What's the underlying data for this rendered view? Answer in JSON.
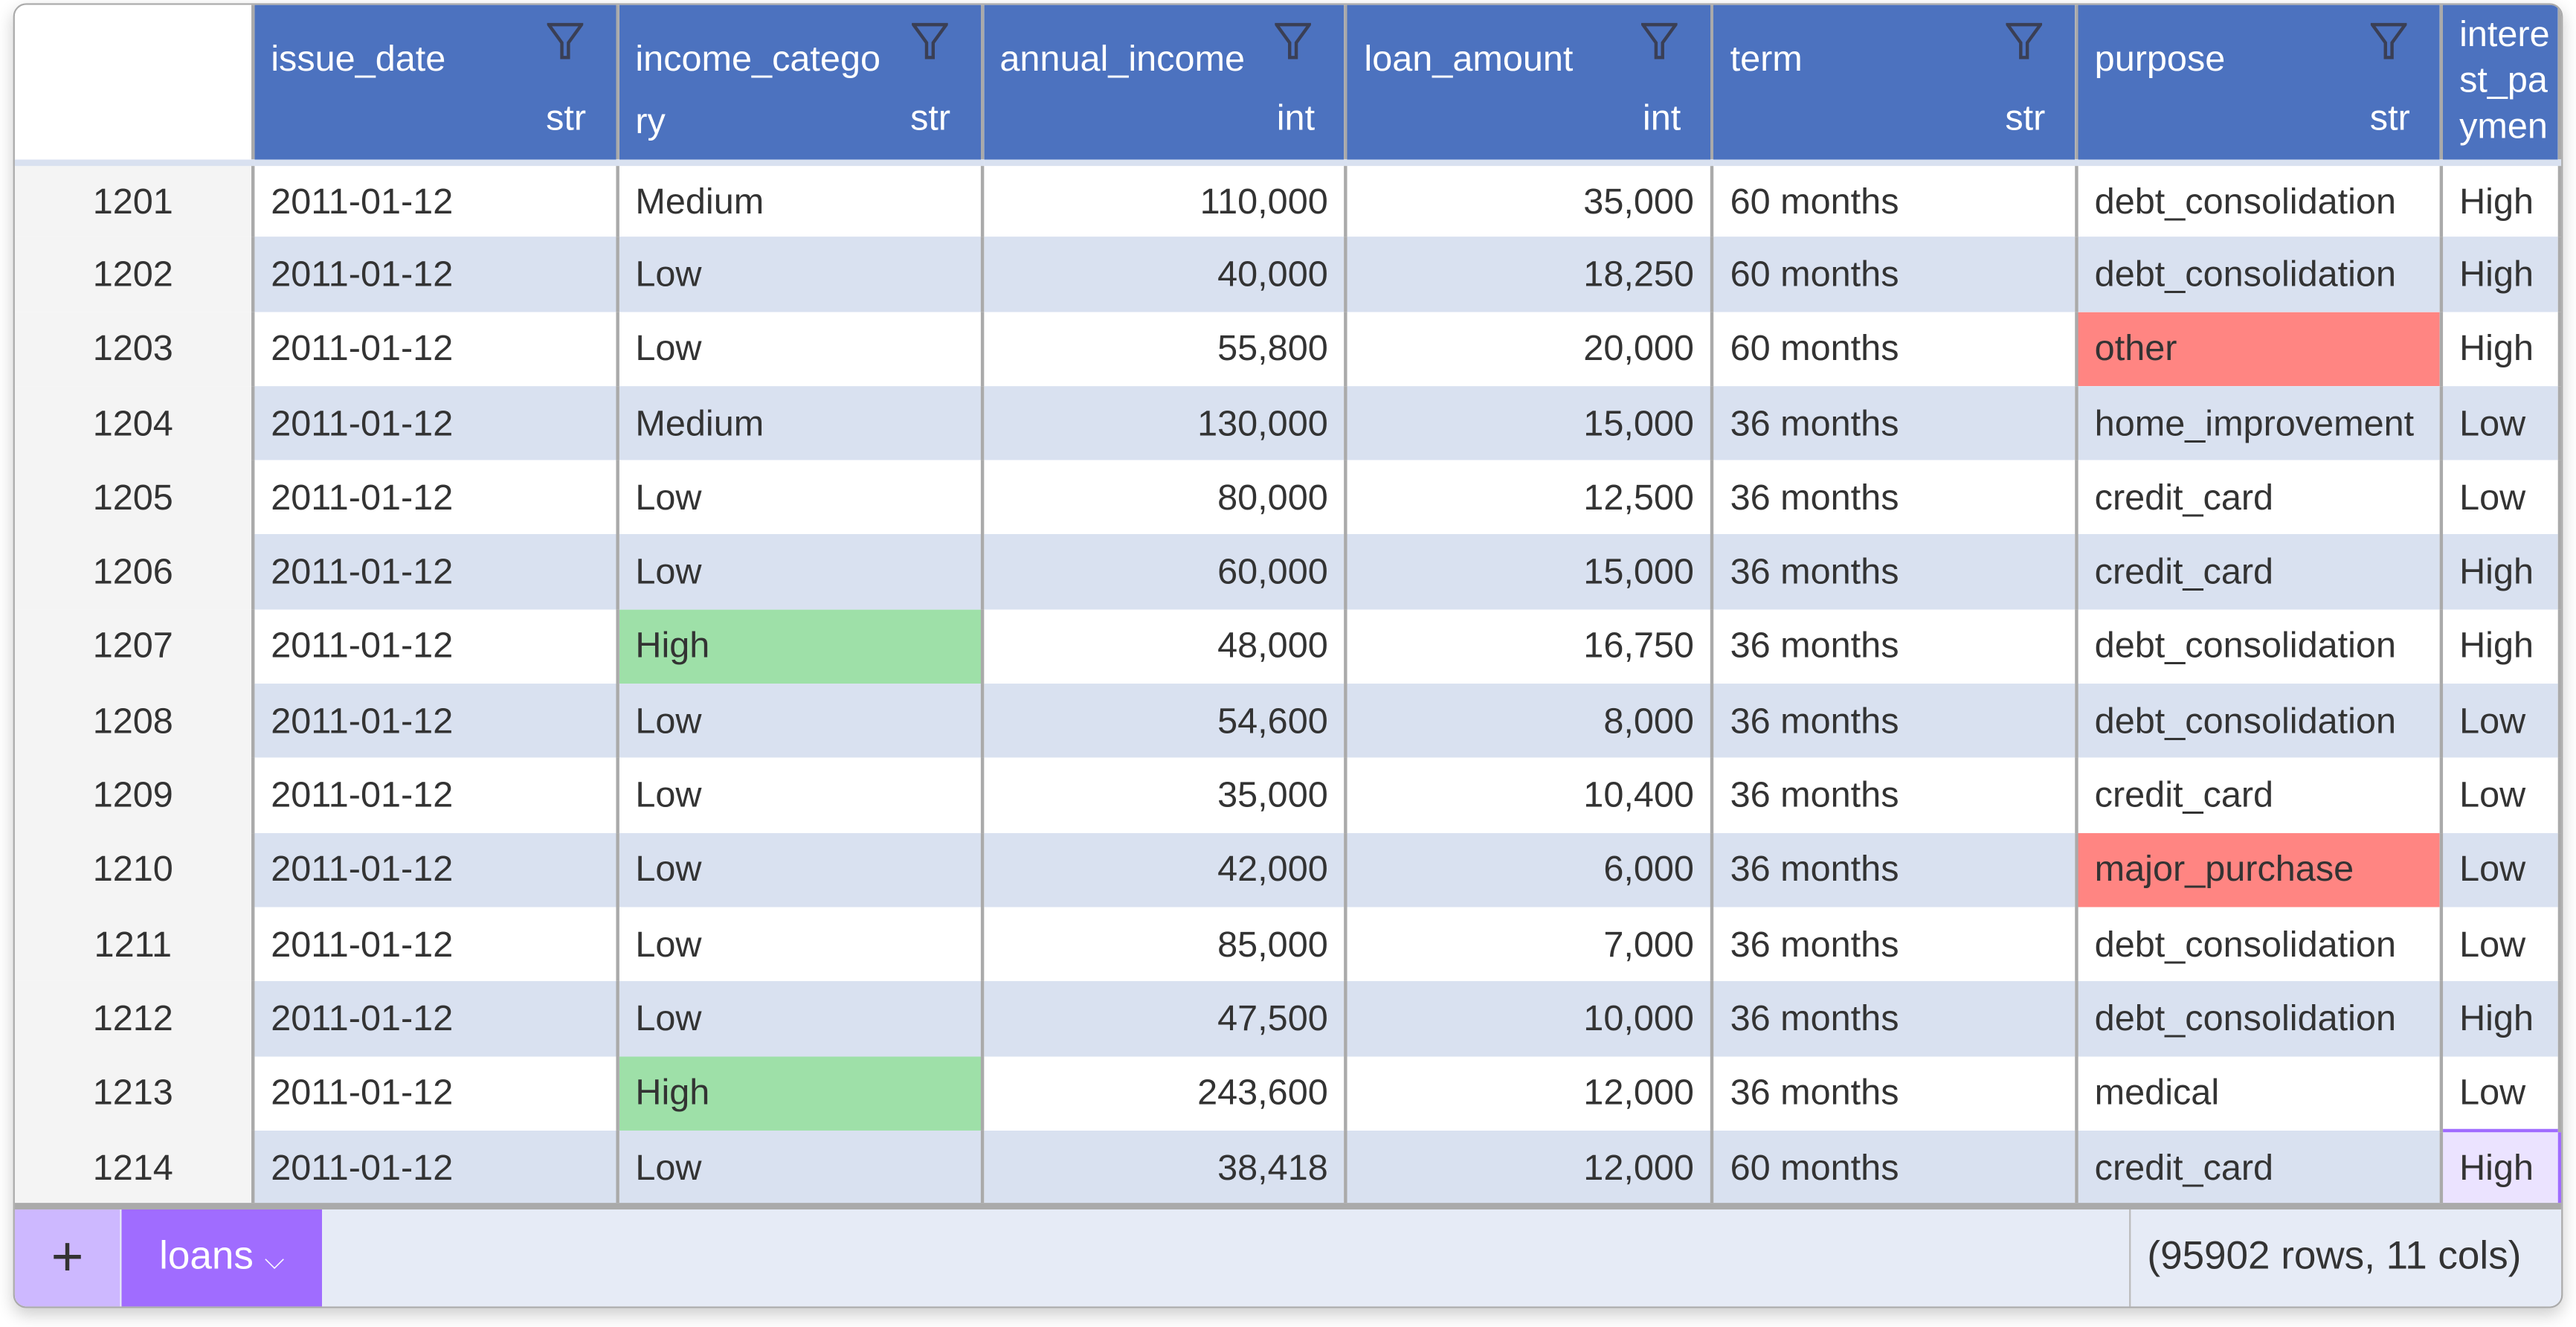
{
  "columns": [
    {
      "name": "issue_date",
      "type": "str",
      "align": "left"
    },
    {
      "name": "income_category",
      "type": "str",
      "align": "left"
    },
    {
      "name": "annual_income",
      "type": "int",
      "align": "right"
    },
    {
      "name": "loan_amount",
      "type": "int",
      "align": "right"
    },
    {
      "name": "term",
      "type": "str",
      "align": "left"
    },
    {
      "name": "purpose",
      "type": "str",
      "align": "left"
    },
    {
      "name": "interest_payments",
      "type": "",
      "align": "left"
    }
  ],
  "rows": [
    {
      "index": "1201",
      "cells": [
        "2011-01-12",
        "Medium",
        "110,000",
        "35,000",
        "60 months",
        "debt_consolidation",
        "High"
      ]
    },
    {
      "index": "1202",
      "cells": [
        "2011-01-12",
        "Low",
        "40,000",
        "18,250",
        "60 months",
        "debt_consolidation",
        "High"
      ]
    },
    {
      "index": "1203",
      "cells": [
        "2011-01-12",
        "Low",
        "55,800",
        "20,000",
        "60 months",
        "other",
        "High"
      ],
      "highlight": {
        "5": "red"
      }
    },
    {
      "index": "1204",
      "cells": [
        "2011-01-12",
        "Medium",
        "130,000",
        "15,000",
        "36 months",
        "home_improvement",
        "Low"
      ]
    },
    {
      "index": "1205",
      "cells": [
        "2011-01-12",
        "Low",
        "80,000",
        "12,500",
        "36 months",
        "credit_card",
        "Low"
      ]
    },
    {
      "index": "1206",
      "cells": [
        "2011-01-12",
        "Low",
        "60,000",
        "15,000",
        "36 months",
        "credit_card",
        "High"
      ]
    },
    {
      "index": "1207",
      "cells": [
        "2011-01-12",
        "High",
        "48,000",
        "16,750",
        "36 months",
        "debt_consolidation",
        "High"
      ],
      "highlight": {
        "1": "green"
      }
    },
    {
      "index": "1208",
      "cells": [
        "2011-01-12",
        "Low",
        "54,600",
        "8,000",
        "36 months",
        "debt_consolidation",
        "Low"
      ]
    },
    {
      "index": "1209",
      "cells": [
        "2011-01-12",
        "Low",
        "35,000",
        "10,400",
        "36 months",
        "credit_card",
        "Low"
      ]
    },
    {
      "index": "1210",
      "cells": [
        "2011-01-12",
        "Low",
        "42,000",
        "6,000",
        "36 months",
        "major_purchase",
        "Low"
      ],
      "highlight": {
        "5": "red"
      }
    },
    {
      "index": "1211",
      "cells": [
        "2011-01-12",
        "Low",
        "85,000",
        "7,000",
        "36 months",
        "debt_consolidation",
        "Low"
      ]
    },
    {
      "index": "1212",
      "cells": [
        "2011-01-12",
        "Low",
        "47,500",
        "10,000",
        "36 months",
        "debt_consolidation",
        "High"
      ]
    },
    {
      "index": "1213",
      "cells": [
        "2011-01-12",
        "High",
        "243,600",
        "12,000",
        "36 months",
        "medical",
        "Low"
      ],
      "highlight": {
        "1": "green"
      }
    },
    {
      "index": "1214",
      "cells": [
        "2011-01-12",
        "Low",
        "38,418",
        "12,000",
        "60 months",
        "credit_card",
        "High"
      ],
      "highlight": {
        "6": "sel"
      }
    }
  ],
  "footer": {
    "add_label": "+",
    "sheet_tab": "loans",
    "status": "(95902 rows, 11 cols)"
  },
  "colors": {
    "header": "#4c72bf",
    "alt_row": "#d9e1f0",
    "red_highlight": "#ff8582",
    "green_highlight": "#9ee0a8",
    "accent": "#a06cff"
  },
  "icons": {
    "filter": "funnel-icon",
    "dropdown": "chevron-down-icon",
    "add": "plus-icon"
  }
}
